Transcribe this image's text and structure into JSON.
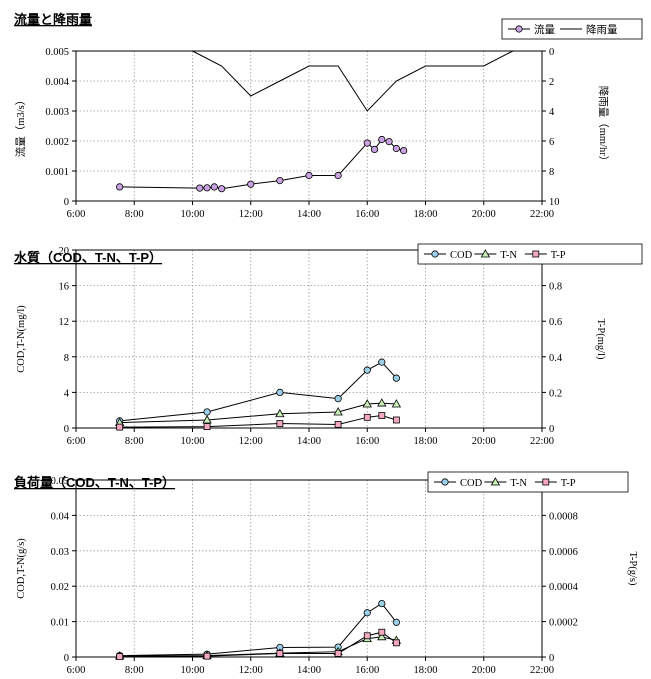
{
  "colors": {
    "flow": "#c8a2e0",
    "cod": "#9ccfe8",
    "tn": "#c8f0b8",
    "tp": "#f4a9c0",
    "line": "#000000"
  },
  "chart_data": [
    {
      "type": "line",
      "title": "流量と降雨量",
      "xlabel": "",
      "ylabel": "流量（m3/s）",
      "ylabel_right": "降雨量（mm/hr）",
      "x_ticks": [
        "6:00",
        "8:00",
        "10:00",
        "12:00",
        "14:00",
        "16:00",
        "18:00",
        "20:00",
        "22:00"
      ],
      "xlim": [
        6,
        22
      ],
      "ylim": [
        0,
        0.005
      ],
      "y_ticks": [
        "0",
        "0.001",
        "0.002",
        "0.003",
        "0.004",
        "0.005"
      ],
      "ylim_right": [
        10,
        0
      ],
      "y_ticks_right": [
        "0",
        "2",
        "4",
        "6",
        "8",
        "10"
      ],
      "right_axis_inverted": true,
      "grid": true,
      "legend_position": "top-right",
      "series": [
        {
          "name": "流量",
          "axis": "left",
          "marker": "circle",
          "color": "#c8a2e0",
          "x": [
            "7:30",
            "10:15",
            "10:30",
            "10:45",
            "11:00",
            "12:00",
            "13:00",
            "14:00",
            "15:00",
            "16:00",
            "16:15",
            "16:30",
            "16:45",
            "17:00",
            "17:15"
          ],
          "y": [
            0.00047,
            0.00043,
            0.00044,
            0.00047,
            0.00041,
            0.00056,
            0.00068,
            0.00085,
            0.00085,
            0.00193,
            0.00172,
            0.00205,
            0.00198,
            0.00175,
            0.00168
          ]
        },
        {
          "name": "降雨量",
          "axis": "right",
          "marker": "none",
          "color": "#000000",
          "x": [
            "10:00",
            "11:00",
            "12:00",
            "13:00",
            "14:00",
            "15:00",
            "16:00",
            "17:00",
            "18:00",
            "19:00",
            "20:00",
            "21:00"
          ],
          "y": [
            0,
            1,
            3,
            2,
            1,
            1,
            4,
            2,
            1,
            1,
            1,
            0
          ]
        }
      ]
    },
    {
      "type": "line",
      "title": "水質（COD、T-N、T-P）",
      "xlabel": "",
      "ylabel": "COD,T-N(mg/l)",
      "ylabel_right": "T-P(mg/l)",
      "x_ticks": [
        "6:00",
        "8:00",
        "10:00",
        "12:00",
        "14:00",
        "16:00",
        "18:00",
        "20:00",
        "22:00"
      ],
      "xlim": [
        6,
        22
      ],
      "ylim": [
        0,
        20
      ],
      "y_ticks": [
        "0",
        "4",
        "8",
        "12",
        "16",
        "20"
      ],
      "ylim_right": [
        0,
        1
      ],
      "y_ticks_right": [
        "0",
        "0.2",
        "0.4",
        "0.6",
        "0.8",
        "1"
      ],
      "grid": true,
      "legend_position": "top-right",
      "series": [
        {
          "name": "COD",
          "axis": "left",
          "marker": "circle",
          "color": "#9ccfe8",
          "x": [
            "7:30",
            "10:30",
            "13:00",
            "15:00",
            "16:00",
            "16:30",
            "17:00"
          ],
          "y": [
            0.8,
            1.8,
            4.0,
            3.3,
            6.5,
            7.4,
            5.6
          ]
        },
        {
          "name": "T-N",
          "axis": "left",
          "marker": "triangle",
          "color": "#c8f0b8",
          "x": [
            "7:30",
            "10:30",
            "13:00",
            "15:00",
            "16:00",
            "16:30",
            "17:00"
          ],
          "y": [
            0.6,
            0.9,
            1.6,
            1.8,
            2.7,
            2.8,
            2.7
          ]
        },
        {
          "name": "T-P",
          "axis": "right",
          "marker": "square",
          "color": "#f4a9c0",
          "x": [
            "7:30",
            "10:30",
            "13:00",
            "15:00",
            "16:00",
            "16:30",
            "17:00"
          ],
          "y": [
            0.005,
            0.008,
            0.025,
            0.02,
            0.06,
            0.07,
            0.045
          ]
        }
      ]
    },
    {
      "type": "line",
      "title": "負荷量（COD、T-N、T-P）",
      "xlabel": "",
      "ylabel": "COD,T-N(g/s)",
      "ylabel_right": "T-P(g/s)",
      "x_ticks": [
        "6:00",
        "8:00",
        "10:00",
        "12:00",
        "14:00",
        "16:00",
        "18:00",
        "20:00",
        "22:00"
      ],
      "xlim": [
        6,
        22
      ],
      "ylim": [
        0,
        0.05
      ],
      "y_ticks": [
        "0",
        "0.01",
        "0.02",
        "0.03",
        "0.04",
        "0.05"
      ],
      "ylim_right": [
        0,
        0.001
      ],
      "y_ticks_right": [
        "0",
        "0.0002",
        "0.0004",
        "0.0006",
        "0.0008",
        "0.001"
      ],
      "grid": true,
      "legend_position": "top-right",
      "series": [
        {
          "name": "COD",
          "axis": "left",
          "marker": "circle",
          "color": "#9ccfe8",
          "x": [
            "7:30",
            "10:30",
            "13:00",
            "15:00",
            "16:00",
            "16:30",
            "17:00"
          ],
          "y": [
            0.0004,
            0.0008,
            0.0027,
            0.0028,
            0.0125,
            0.0151,
            0.0098
          ]
        },
        {
          "name": "T-N",
          "axis": "left",
          "marker": "triangle",
          "color": "#c8f0b8",
          "x": [
            "7:30",
            "10:30",
            "13:00",
            "15:00",
            "16:00",
            "16:30",
            "17:00"
          ],
          "y": [
            0.0003,
            0.0004,
            0.0011,
            0.0015,
            0.0052,
            0.0057,
            0.0047
          ]
        },
        {
          "name": "T-P",
          "axis": "right",
          "marker": "square",
          "color": "#f4a9c0",
          "x": [
            "7:30",
            "10:30",
            "13:00",
            "15:00",
            "16:00",
            "16:30",
            "17:00"
          ],
          "y": [
            2e-06,
            5e-06,
            2e-05,
            2e-05,
            0.00012,
            0.00014,
            8e-05
          ]
        }
      ]
    }
  ]
}
